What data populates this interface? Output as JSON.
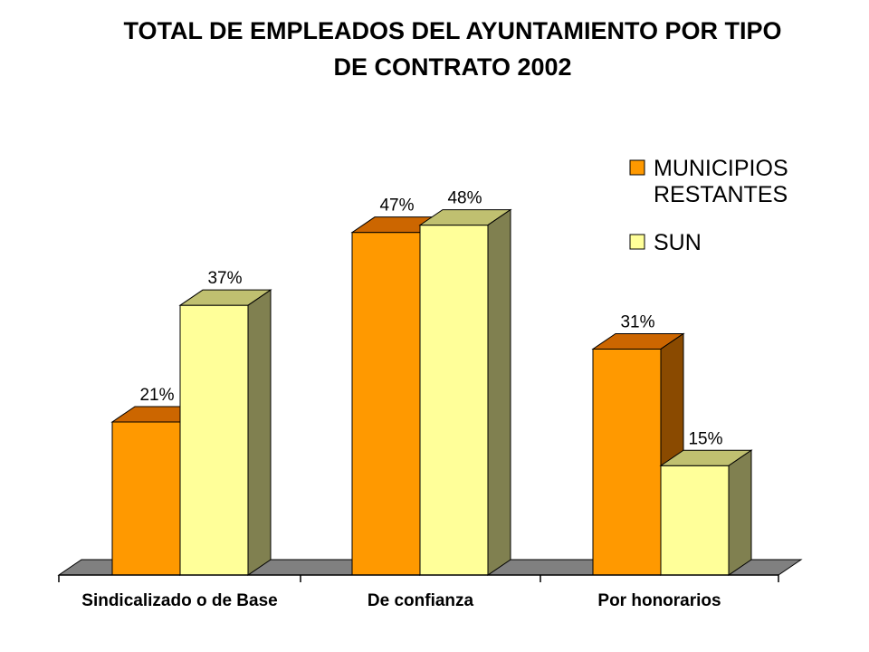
{
  "chart_data": {
    "type": "bar",
    "title_line1": "TOTAL DE EMPLEADOS DEL AYUNTAMIENTO POR TIPO",
    "title_line2": "DE CONTRATO 2002",
    "categories": [
      "Sindicalizado o de Base",
      "De confianza",
      "Por honorarios"
    ],
    "series": [
      {
        "name": "MUNICIPIOS RESTANTES",
        "name_lines": [
          "MUNICIPIOS",
          "RESTANTES"
        ],
        "values": [
          21,
          47,
          31
        ],
        "labels": [
          "21%",
          "47%",
          "31%"
        ],
        "color": "#FF9900",
        "top_color": "#CC6600",
        "side_color": "#8A4A00"
      },
      {
        "name": "SUN",
        "name_lines": [
          "SUN"
        ],
        "values": [
          37,
          48,
          15
        ],
        "labels": [
          "37%",
          "48%",
          "15%"
        ],
        "color": "#FFFF99",
        "top_color": "#C0C070",
        "side_color": "#808050"
      }
    ],
    "ylim": [
      0,
      50
    ],
    "grid": false,
    "legend_position": "top-right",
    "three_d": true,
    "floor_color": "#808080"
  }
}
